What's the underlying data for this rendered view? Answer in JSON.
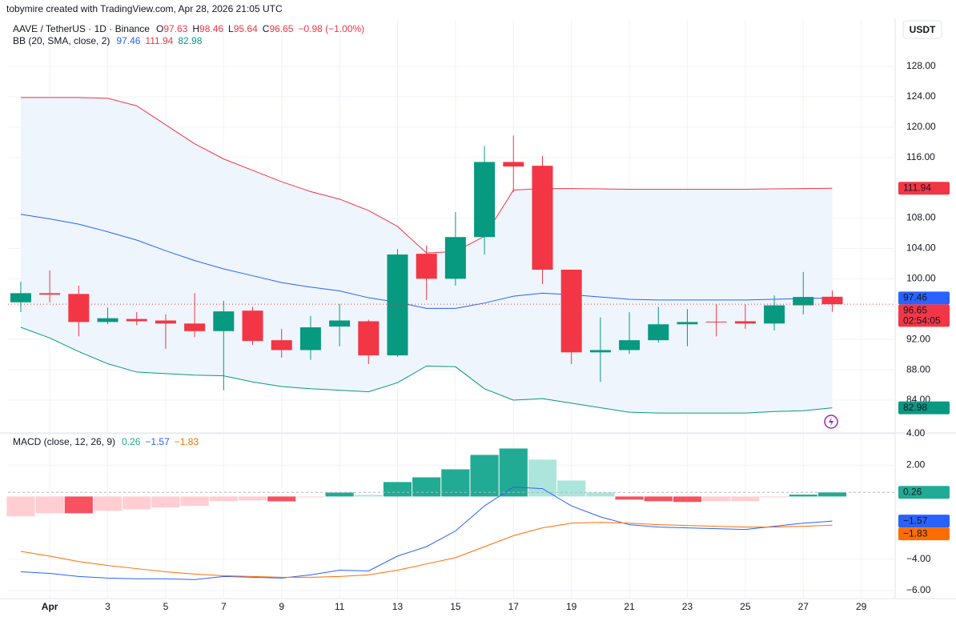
{
  "header": "tobymire created with TradingView.com, Apr 28, 2026 21:05 UTC",
  "chart_data": {
    "type": "candlestick",
    "title": "AAVE / TetherUS · 1D · Binance",
    "currency": "USDT",
    "ohlc_labels": [
      "O",
      "H",
      "L",
      "C"
    ],
    "change_label": "−0.98 (−1.00%)",
    "countdown": "02:54:05",
    "up_color": "#089981",
    "down_color": "#f23645",
    "x": [
      0,
      1,
      2,
      3,
      4,
      5,
      6,
      7,
      8,
      9,
      10,
      11,
      12,
      13,
      14,
      15,
      16,
      17,
      18,
      19,
      20,
      21,
      22,
      23,
      24,
      25,
      26,
      27,
      28
    ],
    "xlim": [
      -0.44,
      30.17
    ],
    "xticks": [
      {
        "value": 1,
        "label": "Apr"
      },
      3,
      5,
      7,
      9,
      11,
      13,
      15,
      17,
      19,
      21,
      23,
      25,
      27,
      29
    ],
    "ylim": [
      79.78,
      133.59
    ],
    "yticks": [
      {
        "value": 84,
        "label": "84.00"
      },
      {
        "value": 88,
        "label": "88.00"
      },
      {
        "value": 92,
        "label": "92.00"
      },
      {
        "value": 100,
        "label": "100.00"
      },
      {
        "value": 104,
        "label": "104.00"
      },
      {
        "value": 108,
        "label": "108.00"
      },
      {
        "value": 116,
        "label": "116.00"
      },
      {
        "value": 120,
        "label": "120.00"
      },
      {
        "value": 124,
        "label": "124.00"
      },
      {
        "value": 128,
        "label": "128.00"
      }
    ],
    "grid": true,
    "candles": {
      "open": [
        96.9,
        98.1,
        98.0,
        94.3,
        94.7,
        94.5,
        94.1,
        93.1,
        95.8,
        91.9,
        90.6,
        93.7,
        94.4,
        89.9,
        103.3,
        100.0,
        105.5,
        115.4,
        114.9,
        101.2,
        90.3,
        90.6,
        91.9,
        94.0,
        94.35,
        94.4,
        94.1,
        96.5,
        97.63
      ],
      "high": [
        99.6,
        101.1,
        99.1,
        96.2,
        95.6,
        95.3,
        98.1,
        97.1,
        96.3,
        93.4,
        95.1,
        96.7,
        94.6,
        103.9,
        104.4,
        108.8,
        117.5,
        118.9,
        116.2,
        101.2,
        94.9,
        95.6,
        96.3,
        96.0,
        96.6,
        96.6,
        97.8,
        100.9,
        98.46
      ],
      "low": [
        95.6,
        96.9,
        92.4,
        94.0,
        93.9,
        90.75,
        92.3,
        85.3,
        91.3,
        89.6,
        89.3,
        91.1,
        88.75,
        89.7,
        97.2,
        99.1,
        103.2,
        111.4,
        99.3,
        88.75,
        86.4,
        90.1,
        91.6,
        91.1,
        92.4,
        93.4,
        93.2,
        95.3,
        95.64
      ],
      "close": [
        98.1,
        97.9,
        94.3,
        94.8,
        94.4,
        94.1,
        93.1,
        95.7,
        91.8,
        90.6,
        93.6,
        94.5,
        89.9,
        103.2,
        100.0,
        105.5,
        115.4,
        114.8,
        101.2,
        90.3,
        90.6,
        91.9,
        94.0,
        94.3,
        94.25,
        94.1,
        96.5,
        97.6,
        96.65
      ]
    },
    "bb": {
      "label": "BB (20, SMA, close, 2)",
      "fill": "#eef5fc",
      "basis": {
        "color": "#2962ff",
        "values": [
          108.5,
          107.9,
          107.2,
          106.2,
          105.1,
          103.7,
          102.4,
          101.3,
          100.4,
          99.5,
          98.9,
          98.4,
          97.5,
          96.9,
          96.1,
          96.1,
          96.8,
          97.7,
          98.1,
          97.9,
          97.6,
          97.3,
          97.2,
          97.2,
          97.2,
          97.2,
          97.3,
          97.4,
          97.46
        ]
      },
      "upper": {
        "color": "#f23645",
        "values": [
          123.9,
          123.9,
          123.9,
          123.8,
          122.8,
          120.3,
          117.8,
          115.8,
          114.3,
          112.8,
          111.5,
          110.5,
          109.0,
          106.9,
          103.4,
          103.6,
          105.6,
          111.7,
          111.9,
          111.9,
          111.85,
          111.8,
          111.8,
          111.8,
          111.8,
          111.8,
          111.85,
          111.9,
          111.94
        ]
      },
      "lower": {
        "color": "#089981",
        "values": [
          93.6,
          92.2,
          90.4,
          88.8,
          87.7,
          87.5,
          87.3,
          87.2,
          86.4,
          85.8,
          85.5,
          85.3,
          85.1,
          86.3,
          88.5,
          88.4,
          85.5,
          84.0,
          84.2,
          83.6,
          83.0,
          82.4,
          82.3,
          82.3,
          82.3,
          82.3,
          82.5,
          82.6,
          82.98
        ]
      }
    },
    "macd": {
      "label": "MACD (close, 12, 26, 9)",
      "ylim": [
        -6.51,
        4.0
      ],
      "yticks": [
        {
          "value": -6,
          "label": "−6.00"
        },
        {
          "value": -4,
          "label": "−4.00"
        },
        {
          "value": 2,
          "label": "2.00"
        },
        {
          "value": 4,
          "label": "4.00"
        }
      ],
      "histogram": {
        "color": "#22ab94",
        "last_value_label": "0.26",
        "values": [
          -1.27,
          -1.07,
          -1.07,
          -0.92,
          -0.82,
          -0.7,
          -0.6,
          -0.3,
          -0.25,
          -0.31,
          -0.05,
          0.25,
          0.1,
          0.92,
          1.22,
          1.73,
          2.65,
          3.06,
          2.35,
          1.02,
          0.25,
          -0.2,
          -0.3,
          -0.35,
          -0.3,
          -0.3,
          -0.05,
          0.12,
          0.26
        ],
        "colors": [
          "#ffcdd2",
          "#ffcdd2",
          "#f7525f",
          "#ffcdd2",
          "#ffcdd2",
          "#ffcdd2",
          "#ffcdd2",
          "#ffcdd2",
          "#ffcdd2",
          "#f7525f",
          "#ffcdd2",
          "#22ab94",
          "#ace5dc",
          "#22ab94",
          "#22ab94",
          "#22ab94",
          "#22ab94",
          "#22ab94",
          "#ace5dc",
          "#ace5dc",
          "#ace5dc",
          "#f7525f",
          "#f7525f",
          "#f7525f",
          "#ffcdd2",
          "#ffcdd2",
          "#ffcdd2",
          "#22ab94",
          "#22ab94"
        ]
      },
      "macd": {
        "color": "#2962ff",
        "last_value_label": "−1.57",
        "values": [
          -4.8,
          -4.9,
          -5.1,
          -5.2,
          -5.25,
          -5.25,
          -5.3,
          -5.1,
          -5.15,
          -5.2,
          -5.0,
          -4.7,
          -4.75,
          -3.8,
          -3.2,
          -2.2,
          -0.6,
          0.6,
          0.5,
          -0.6,
          -1.3,
          -1.8,
          -1.95,
          -2.0,
          -2.05,
          -2.1,
          -1.9,
          -1.7,
          -1.57
        ]
      },
      "signal": {
        "color": "#ff6d00",
        "last_value_label": "−1.83",
        "values": [
          -3.5,
          -3.8,
          -4.15,
          -4.4,
          -4.6,
          -4.8,
          -4.95,
          -5.05,
          -5.1,
          -5.15,
          -5.15,
          -5.1,
          -5.0,
          -4.7,
          -4.3,
          -3.9,
          -3.2,
          -2.5,
          -2.0,
          -1.7,
          -1.65,
          -1.7,
          -1.8,
          -1.85,
          -1.9,
          -1.95,
          -1.95,
          -1.9,
          -1.83
        ]
      }
    }
  }
}
